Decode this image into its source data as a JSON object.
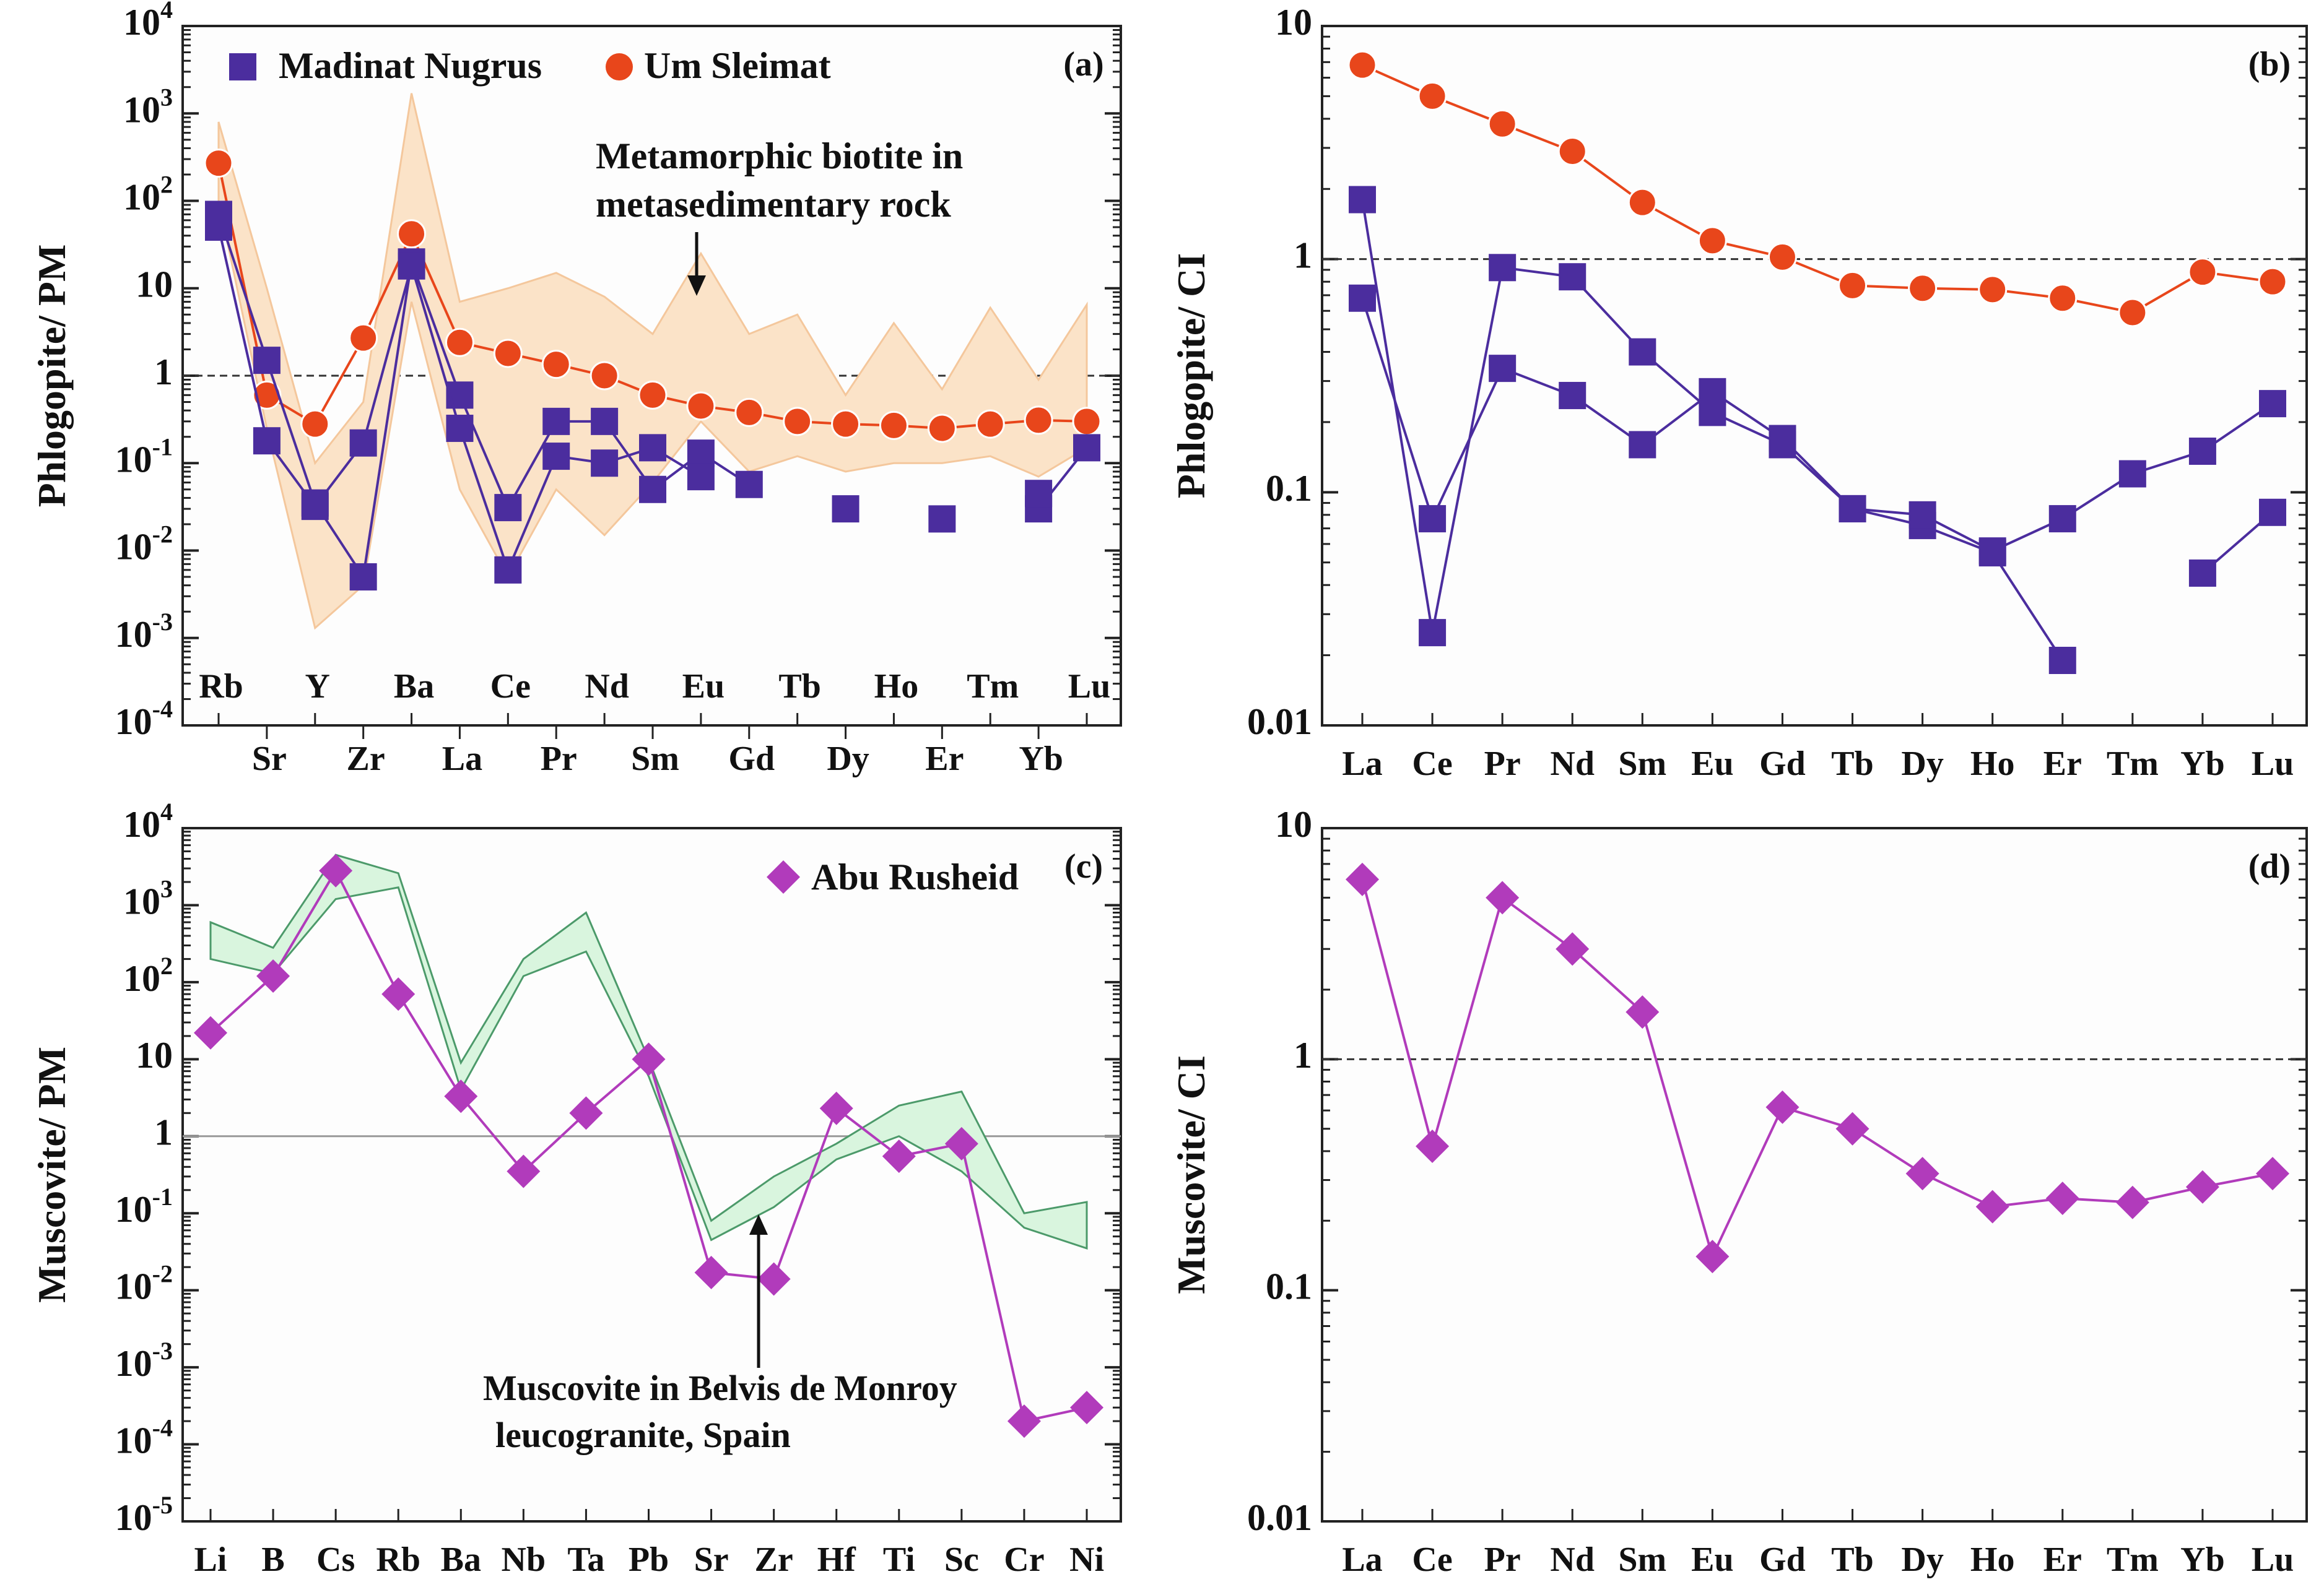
{
  "chart_data": [
    {
      "panel": "(a)",
      "type": "line",
      "scale": "log",
      "ylabel": "Phlogopite/ PM",
      "ylim": [
        0.0001,
        10000
      ],
      "reference_line": 1,
      "x_upper": [
        "Rb",
        "Y",
        "Ba",
        "Ce",
        "Nd",
        "Eu",
        "Tb",
        "Ho",
        "Tm",
        "Lu"
      ],
      "x_lower": [
        "Sr",
        "Zr",
        "La",
        "Pr",
        "Sm",
        "Gd",
        "Dy",
        "Er",
        "Yb"
      ],
      "categories": [
        "Rb",
        "Sr",
        "Y",
        "Zr",
        "Ba",
        "La",
        "Ce",
        "Pr",
        "Nd",
        "Sm",
        "Eu",
        "Gd",
        "Tb",
        "Dy",
        "Ho",
        "Er",
        "Tm",
        "Yb",
        "Lu"
      ],
      "legend": [
        "Madinat Nugrus",
        "Um Sleimat"
      ],
      "annotation": [
        "Metamorphic biotite in",
        "metasedimentary rock"
      ],
      "series": [
        {
          "name": "Um Sleimat",
          "marker": "circle",
          "color": "#e8461b",
          "values": [
            270,
            0.6,
            0.28,
            2.7,
            42,
            2.4,
            1.8,
            1.35,
            1.0,
            0.6,
            0.45,
            0.38,
            0.3,
            0.28,
            0.27,
            0.25,
            0.28,
            0.31,
            0.3
          ]
        },
        {
          "name": "Madinat Nugrus 1",
          "marker": "square",
          "color": "#4b2d9e",
          "values": [
            70,
            1.5,
            0.035,
            0.005,
            20,
            0.6,
            0.031,
            0.3,
            0.3,
            0.05,
            0.13,
            0.057,
            null,
            0.03,
            null,
            0.023,
            null,
            0.03,
            0.15
          ]
        },
        {
          "name": "Madinat Nugrus 2",
          "marker": "square",
          "color": "#4b2d9e",
          "values": [
            50,
            0.18,
            0.032,
            0.17,
            18,
            0.25,
            0.006,
            0.12,
            0.1,
            0.15,
            0.07,
            null,
            null,
            null,
            null,
            null,
            null,
            0.045,
            null
          ]
        }
      ],
      "band": {
        "name": "Metamorphic biotite in metasedimentary rock",
        "upper": [
          800,
          10,
          0.1,
          0.5,
          1700,
          7,
          10,
          15,
          8,
          3,
          25,
          3,
          5,
          0.6,
          4,
          0.7,
          6,
          0.9,
          6.5
        ],
        "lower": [
          100,
          0.25,
          0.0013,
          0.004,
          7,
          0.05,
          0.005,
          0.05,
          0.015,
          0.06,
          0.3,
          0.08,
          0.12,
          0.08,
          0.1,
          0.1,
          0.12,
          0.07,
          0.15
        ]
      }
    },
    {
      "panel": "(b)",
      "type": "line",
      "scale": "log",
      "ylabel": "Phlogopite/ CI",
      "ylim": [
        0.01,
        10
      ],
      "reference_line": 1,
      "categories": [
        "La",
        "Ce",
        "Pr",
        "Nd",
        "Sm",
        "Eu",
        "Gd",
        "Tb",
        "Dy",
        "Ho",
        "Er",
        "Tm",
        "Yb",
        "Lu"
      ],
      "series": [
        {
          "name": "Um Sleimat",
          "marker": "circle",
          "color": "#e8461b",
          "values": [
            6.8,
            5.0,
            3.8,
            2.9,
            1.75,
            1.2,
            1.02,
            0.77,
            0.75,
            0.74,
            0.68,
            0.59,
            0.88,
            0.8
          ]
        },
        {
          "name": "Madinat Nugrus 1",
          "marker": "square",
          "color": "#4b2d9e",
          "values": [
            1.8,
            0.025,
            0.92,
            0.84,
            0.4,
            0.22,
            0.16,
            0.085,
            0.072,
            0.055,
            0.019,
            null,
            0.045,
            0.082
          ]
        },
        {
          "name": "Madinat Nugrus 2",
          "marker": "square",
          "color": "#4b2d9e",
          "values": [
            0.68,
            0.077,
            0.34,
            0.26,
            0.16,
            0.27,
            0.17,
            0.085,
            0.08,
            0.056,
            0.077,
            0.12,
            0.15,
            0.24
          ]
        }
      ]
    },
    {
      "panel": "(c)",
      "type": "line",
      "scale": "log",
      "ylabel": "Muscovite/ PM",
      "ylim": [
        1e-05,
        10000
      ],
      "reference_line": 1,
      "categories": [
        "Li",
        "B",
        "Cs",
        "Rb",
        "Ba",
        "Nb",
        "Ta",
        "Pb",
        "Sr",
        "Zr",
        "Hf",
        "Ti",
        "Sc",
        "Cr",
        "Ni"
      ],
      "legend": [
        "Abu Rusheid"
      ],
      "annotation": [
        "Muscovite in Belvis de Monroy",
        "leucogranite, Spain"
      ],
      "series": [
        {
          "name": "Abu Rusheid",
          "marker": "diamond",
          "color": "#b13bbb",
          "values": [
            22,
            120,
            2800,
            70,
            3.3,
            0.35,
            2.0,
            10,
            0.017,
            0.014,
            2.3,
            0.55,
            0.8,
            0.0002,
            0.0003
          ]
        }
      ],
      "band": {
        "name": "Muscovite in Belvis de Monroy leucogranite, Spain",
        "upper": [
          600,
          280,
          4500,
          2600,
          9,
          200,
          800,
          10,
          0.08,
          0.3,
          0.8,
          2.5,
          3.8,
          0.1,
          0.14
        ],
        "lower": [
          200,
          130,
          1200,
          1700,
          4,
          120,
          250,
          6,
          0.045,
          0.12,
          0.5,
          1.0,
          0.35,
          0.065,
          0.035
        ]
      }
    },
    {
      "panel": "(d)",
      "type": "line",
      "scale": "log",
      "ylabel": "Muscovite/ CI",
      "ylim": [
        0.01,
        10
      ],
      "reference_line": 1,
      "categories": [
        "La",
        "Ce",
        "Pr",
        "Nd",
        "Sm",
        "Eu",
        "Gd",
        "Tb",
        "Dy",
        "Ho",
        "Er",
        "Tm",
        "Yb",
        "Lu"
      ],
      "series": [
        {
          "name": "Abu Rusheid",
          "marker": "diamond",
          "color": "#b13bbb",
          "values": [
            6.0,
            0.42,
            5.0,
            3.0,
            1.6,
            0.14,
            0.62,
            0.5,
            0.32,
            0.23,
            0.25,
            0.24,
            0.28,
            0.32
          ]
        }
      ]
    }
  ],
  "colors": {
    "umsleimat": "#e8461b",
    "madinat": "#4b2d9e",
    "aburusheid": "#b13bbb",
    "band_orange": "#fbe3c8",
    "band_green": "#d9f5de"
  },
  "tick_labels": {
    "a": [
      "10^4",
      "10^3",
      "10^2",
      "10",
      "1",
      "10^-1",
      "10^-2",
      "10^-3",
      "10^-4"
    ],
    "b": [
      "10",
      "1",
      "0.1",
      "0.01"
    ],
    "c": [
      "10^4",
      "10^3",
      "10^2",
      "10",
      "1",
      "10^-1",
      "10^-2",
      "10^-3",
      "10^-4",
      "10^-5"
    ],
    "d": [
      "10",
      "1",
      "0.1",
      "0.01"
    ]
  }
}
